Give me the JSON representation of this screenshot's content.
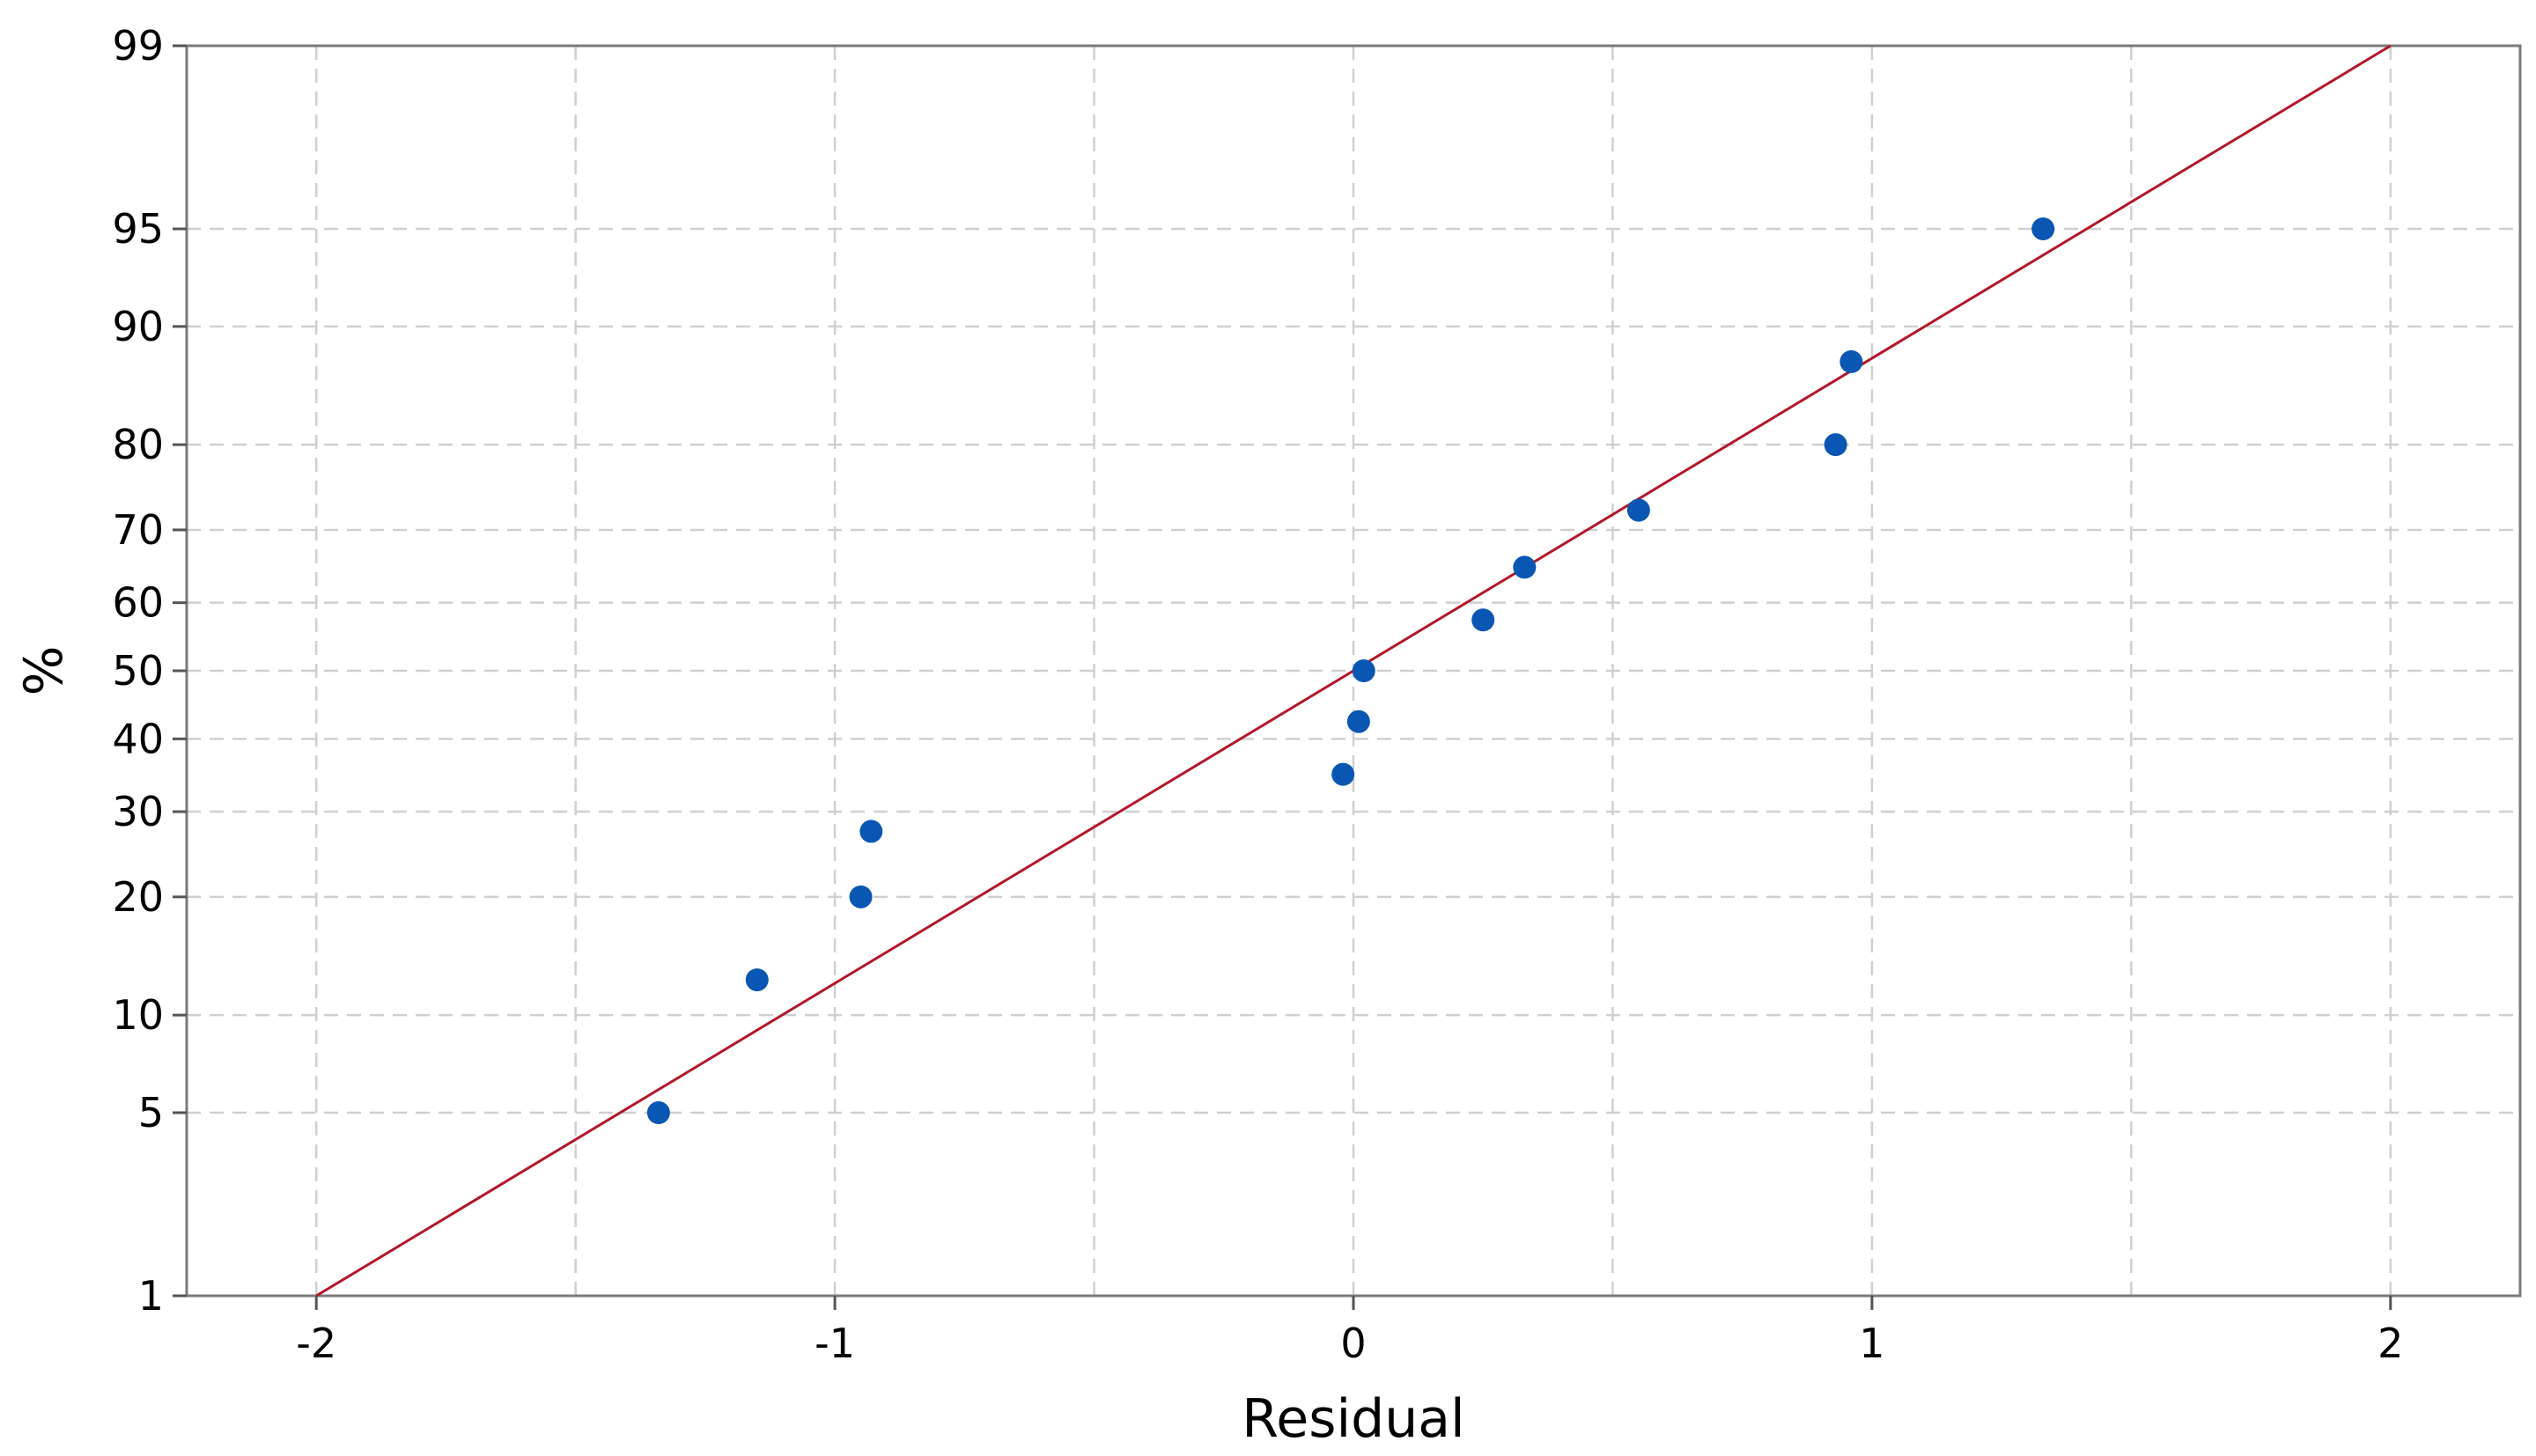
{
  "chart_data": {
    "type": "scatter",
    "title": "",
    "xlabel": "Residual",
    "ylabel": "%",
    "y_scale": "normal-probability",
    "xlim": [
      -2.25,
      2.25
    ],
    "ylim": [
      1,
      99
    ],
    "x_ticks": [
      -2,
      -1,
      0,
      1,
      2
    ],
    "x_tick_labels": [
      "-2",
      "-1",
      "0",
      "1",
      "2"
    ],
    "x_minor_grid": [
      -1.5,
      -0.5,
      0.5,
      1.5
    ],
    "y_ticks": [
      1,
      5,
      10,
      20,
      30,
      40,
      50,
      60,
      70,
      80,
      90,
      95,
      99
    ],
    "y_tick_labels": [
      "1",
      "5",
      "10",
      "20",
      "30",
      "40",
      "50",
      "60",
      "70",
      "80",
      "90",
      "95",
      "99"
    ],
    "grid": true,
    "points": {
      "x": [
        -1.34,
        -1.15,
        -0.95,
        -0.93,
        -0.02,
        0.01,
        0.02,
        0.25,
        0.33,
        0.55,
        0.93,
        0.96,
        1.33
      ],
      "y": [
        5.0,
        12.5,
        20.0,
        27.5,
        35.0,
        42.5,
        50.0,
        57.5,
        65.0,
        72.5,
        80.0,
        87.5,
        95.0
      ],
      "color": "#0a56b3"
    },
    "fit_line": {
      "x": [
        -2.0,
        2.0
      ],
      "y": [
        1,
        99
      ],
      "color": "#b2182b"
    }
  }
}
